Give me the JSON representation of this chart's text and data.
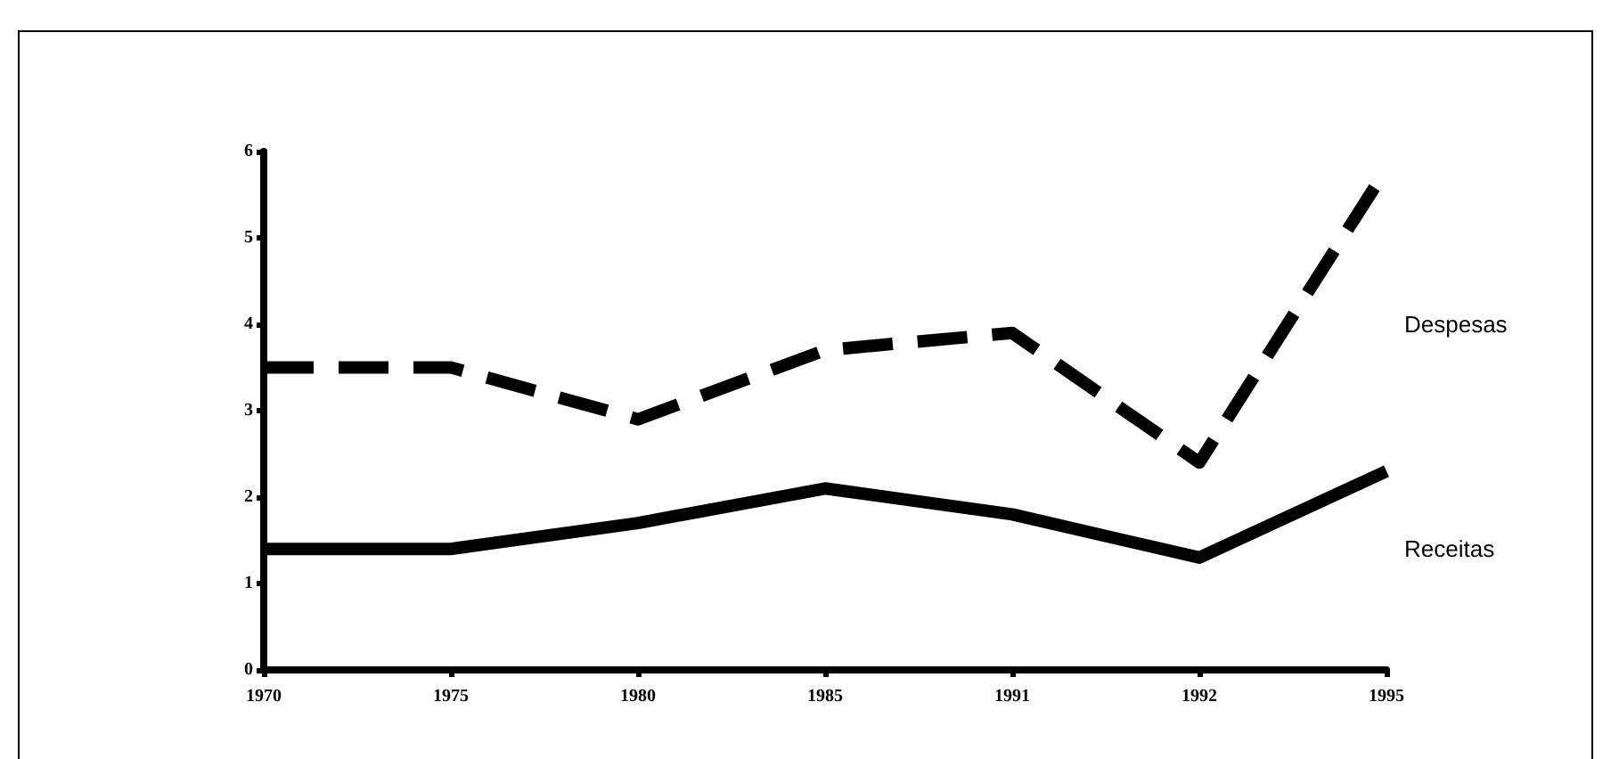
{
  "chart_data": {
    "type": "line",
    "categories": [
      "1970",
      "1975",
      "1980",
      "1985",
      "1991",
      "1992",
      "1995"
    ],
    "series": [
      {
        "name": "Despesas",
        "color": "#000000",
        "line_style": "dashed",
        "values": [
          3.5,
          3.5,
          2.9,
          3.7,
          3.9,
          2.4,
          5.8
        ]
      },
      {
        "name": "Receitas",
        "color": "#000000",
        "line_style": "solid",
        "values": [
          1.4,
          1.4,
          1.7,
          2.1,
          1.8,
          1.3,
          2.3
        ]
      }
    ],
    "ylim": [
      0,
      6
    ],
    "yticks": [
      0,
      1,
      2,
      3,
      4,
      5,
      6
    ],
    "grid": false,
    "legend": false,
    "marker": "none"
  }
}
